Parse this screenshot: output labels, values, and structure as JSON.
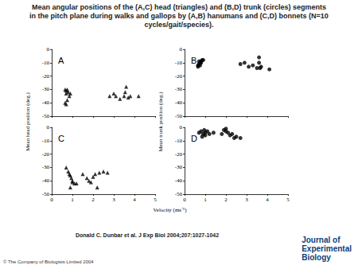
{
  "title": "Mean angular positions of the (A,C) head (triangles) and (B,D) trunk (circles) segments in the pitch plane during walks and gallops by (A,B) hanumans and (C,D) bonnets (N=10 cycles/gait/species).",
  "citation": "Donald C. Dunbar et al. J Exp Biol 2004;207:1027-1042",
  "copyright": "© The Company of Biologists Limited 2004",
  "logo": [
    "Journal of",
    "Experimental",
    "Biology"
  ],
  "chart_data": [
    {
      "type": "scatter",
      "panel": "A",
      "ylabel": "Mean head position (deg.)",
      "tick_labels": "y",
      "grid": false,
      "xlim": [
        0,
        5
      ],
      "xticks": [
        0,
        1,
        2,
        3,
        4,
        5
      ],
      "ylim": [
        -50,
        0
      ],
      "yticks": [
        -50,
        -40,
        -30,
        -20,
        -10,
        0
      ],
      "series": [
        {
          "marker": "triangle",
          "color": "#000000",
          "x": [
            0.65,
            0.7,
            0.75,
            0.8,
            0.85,
            0.7,
            0.65,
            0.7,
            0.75,
            0.9,
            2.8,
            3.0,
            3.1,
            3.3,
            3.5,
            3.55,
            3.6,
            3.7,
            3.8,
            4.2
          ],
          "values": [
            -30,
            -31,
            -30,
            -32,
            -35,
            -33,
            -40,
            -41,
            -38,
            -33,
            -35,
            -33,
            -35,
            -37,
            -35,
            -32,
            -28,
            -36,
            -35,
            -35
          ]
        }
      ]
    },
    {
      "type": "scatter",
      "panel": "B",
      "ylabel": "Mean trunk position (deg.)",
      "tick_labels": "y",
      "grid": false,
      "xlim": [
        0,
        5
      ],
      "xticks": [
        0,
        1,
        2,
        3,
        4,
        5
      ],
      "ylim": [
        -50,
        0
      ],
      "yticks": [
        -50,
        -40,
        -30,
        -20,
        -10,
        0
      ],
      "series": [
        {
          "marker": "circle",
          "color": "#000000",
          "x": [
            0.65,
            0.7,
            0.75,
            0.8,
            0.85,
            0.7,
            0.65,
            0.75,
            0.8,
            0.9,
            2.7,
            2.9,
            3.1,
            3.3,
            3.5,
            3.6,
            3.6,
            3.65,
            3.7,
            4.1
          ],
          "values": [
            -13,
            -11,
            -10,
            -9,
            -8,
            -9,
            -12,
            -12,
            -10,
            -8,
            -11,
            -10,
            -13,
            -12,
            -14,
            -10,
            -6,
            -14,
            -13,
            -15
          ]
        }
      ]
    },
    {
      "type": "scatter",
      "panel": "C",
      "xlabel": "Velocity (ms⁻¹)",
      "grid": false,
      "xlim": [
        0,
        5
      ],
      "xticks": [
        0,
        1,
        2,
        3,
        4,
        5
      ],
      "ylim": [
        -50,
        0
      ],
      "yticks": [
        -50,
        -40,
        -30,
        -20,
        -10,
        0
      ],
      "series": [
        {
          "marker": "triangle",
          "color": "#000000",
          "x": [
            0.7,
            0.8,
            0.85,
            0.9,
            0.95,
            1.0,
            1.1,
            0.9,
            1.0,
            1.2,
            1.5,
            1.7,
            1.8,
            1.9,
            2.0,
            2.1,
            2.2,
            2.3,
            2.5,
            2.7
          ],
          "values": [
            -30,
            -33,
            -35,
            -36,
            -38,
            -41,
            -42,
            -45,
            -40,
            -42,
            -35,
            -38,
            -40,
            -41,
            -37,
            -35,
            -45,
            -34,
            -33,
            -34
          ]
        }
      ]
    },
    {
      "type": "scatter",
      "panel": "D",
      "grid": false,
      "xlim": [
        0,
        5
      ],
      "xticks": [
        0,
        1,
        2,
        3,
        4,
        5
      ],
      "ylim": [
        -50,
        0
      ],
      "yticks": [
        -50,
        -40,
        -30,
        -20,
        -10,
        0
      ],
      "series": [
        {
          "marker": "circle",
          "color": "#000000",
          "x": [
            0.7,
            0.8,
            0.9,
            0.95,
            1.0,
            1.1,
            1.2,
            0.85,
            1.4,
            1.0,
            1.8,
            1.9,
            2.0,
            2.0,
            2.1,
            2.2,
            2.4,
            2.5,
            2.7,
            2.3
          ],
          "values": [
            -4,
            -3,
            -5,
            -2,
            -6,
            -3,
            -5,
            -7,
            -4,
            -4,
            -5,
            -2,
            -1,
            -3,
            -4,
            -6,
            -8,
            -7,
            -8,
            -5
          ]
        }
      ]
    }
  ]
}
